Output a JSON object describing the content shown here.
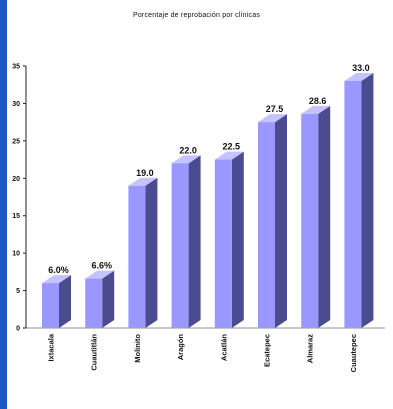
{
  "colors": {
    "bar_front": "#9a98ff",
    "bar_side": "#4b4b8f",
    "bar_top": "#c4c2ff",
    "accent_bar": "#1e56c8"
  },
  "chart_data": {
    "type": "bar",
    "title": "Porcentaje de reprobación por clínicas",
    "xlabel": "",
    "ylabel": "",
    "ylim": [
      0,
      35
    ],
    "yticks": [
      0,
      5,
      10,
      15,
      20,
      25,
      30,
      35
    ],
    "grid": false,
    "categories": [
      "Ixtacala",
      "Cuautitlán",
      "Molinito",
      "Aragón",
      "Acatlán",
      "Ecatepec",
      "Almaraz",
      "Cuautepec"
    ],
    "values": [
      6.0,
      6.6,
      19.0,
      22.0,
      22.5,
      27.5,
      28.6,
      33.0
    ],
    "value_labels": [
      "6.0%",
      "6.6%",
      "19.0",
      "22.0",
      "22.5",
      "27.5",
      "28.6",
      "33.0"
    ]
  }
}
